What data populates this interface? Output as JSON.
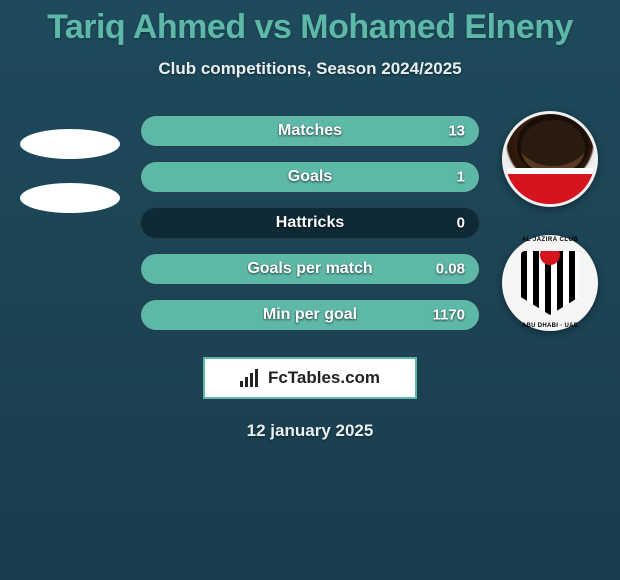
{
  "title": "Tariq Ahmed vs Mohamed Elneny",
  "subtitle": "Club competitions, Season 2024/2025",
  "date": "12 january 2025",
  "brand": "FcTables.com",
  "colors": {
    "accent": "#5eb8a8",
    "bar_bg": "#0d2a36",
    "page_bg_top": "#1e4a5c",
    "page_bg_bottom": "#1a3d4d",
    "text_light": "#e8f0f2",
    "white": "#ffffff"
  },
  "club_badge": {
    "top_text": "AL JAZIRA CLUB",
    "bottom_text": "ABU DHABI · UAE"
  },
  "stats": [
    {
      "label": "Matches",
      "right_value": "13",
      "right_fill_pct": 100
    },
    {
      "label": "Goals",
      "right_value": "1",
      "right_fill_pct": 100
    },
    {
      "label": "Hattricks",
      "right_value": "0",
      "right_fill_pct": 0
    },
    {
      "label": "Goals per match",
      "right_value": "0.08",
      "right_fill_pct": 100
    },
    {
      "label": "Min per goal",
      "right_value": "1170",
      "right_fill_pct": 100
    }
  ]
}
